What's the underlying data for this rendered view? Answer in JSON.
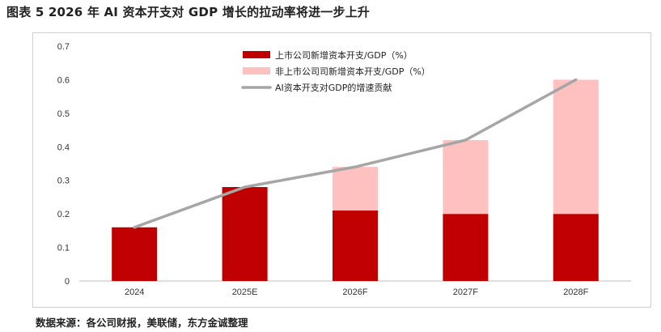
{
  "figure": {
    "title": "图表 5 2026 年 AI 资本开支对 GDP 增长的拉动率将进一步上升",
    "source": "数据来源：各公司财报，美联储，东方金诚整理"
  },
  "chart_data": {
    "type": "bar",
    "stacked": true,
    "title": "",
    "xlabel": "",
    "ylabel": "",
    "ylim": [
      0,
      0.7
    ],
    "yticks": [
      "0",
      "0.1",
      "0.2",
      "0.3",
      "0.4",
      "0.5",
      "0.6",
      "0.7"
    ],
    "categories": [
      "2024",
      "2025E",
      "2026F",
      "2027F",
      "2028F"
    ],
    "series": [
      {
        "name": "上市公司新增资本开支/GDP（%）",
        "kind": "bar",
        "color": "#c00000",
        "values": [
          0.16,
          0.28,
          0.21,
          0.2,
          0.2
        ]
      },
      {
        "name": "非上市公司司新增资本开支/GDP（%）",
        "kind": "bar",
        "color": "#ffc0c0",
        "values": [
          0,
          0,
          0.13,
          0.22,
          0.4
        ]
      },
      {
        "name": "AI资本开支对GDP的增速贡献",
        "kind": "line",
        "color": "#a6a6a6",
        "values": [
          0.16,
          0.28,
          0.34,
          0.42,
          0.6
        ]
      }
    ],
    "legend_position": "top-center",
    "grid": false
  }
}
